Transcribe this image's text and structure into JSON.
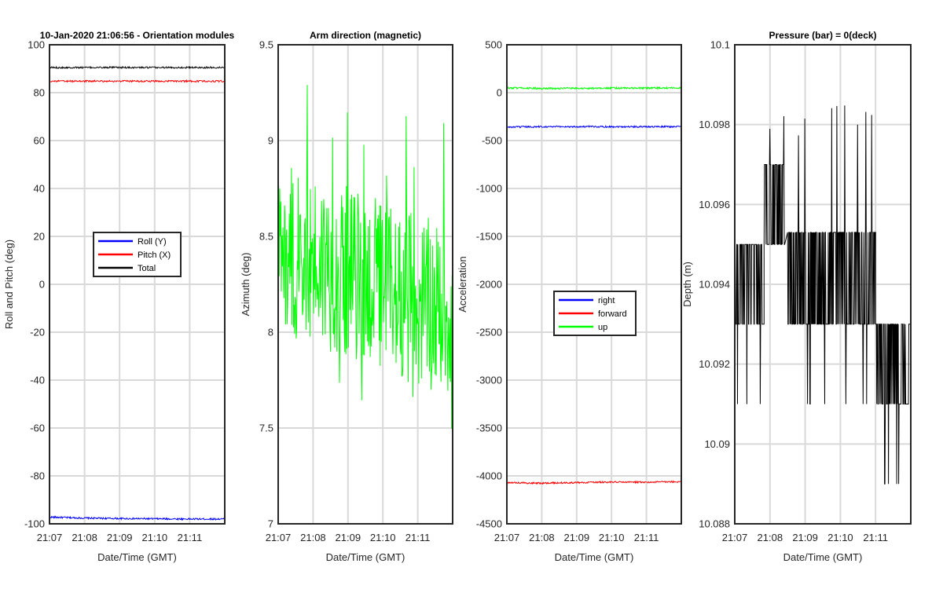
{
  "chart_data": [
    {
      "type": "line",
      "title": "10-Jan-2020 21:06:56 - Orientation modules",
      "xlabel": "Date/Time (GMT)",
      "ylabel": "Roll and Pitch (deg)",
      "x_range": [
        "21:07",
        "21:12"
      ],
      "x_ticks": [
        "21:07",
        "21:08",
        "21:09",
        "21:10",
        "21:11"
      ],
      "ylim": [
        -100,
        100
      ],
      "y_ticks": [
        100,
        80,
        60,
        40,
        20,
        0,
        -20,
        -40,
        -60,
        -80,
        -100
      ],
      "grid": true,
      "legend": "center",
      "series": [
        {
          "name": "Roll (Y)",
          "color": "#0000ff",
          "values": [
            -97.2,
            -97.6,
            -97.8,
            -97.9,
            -98.0,
            -98.0
          ]
        },
        {
          "name": "Pitch (X)",
          "color": "#ff0000",
          "values": [
            84.8,
            84.8,
            84.8,
            84.8,
            84.8,
            84.8
          ]
        },
        {
          "name": "Total",
          "color": "#000000",
          "values": [
            90.5,
            90.5,
            90.5,
            90.5,
            90.5,
            90.5
          ]
        }
      ]
    },
    {
      "type": "line",
      "title": "Arm direction (magnetic)",
      "xlabel": "Date/Time (GMT)",
      "ylabel": "Azimuth (deg)",
      "x_range": [
        "21:07",
        "21:12"
      ],
      "x_ticks": [
        "21:07",
        "21:08",
        "21:09",
        "21:10",
        "21:11"
      ],
      "ylim": [
        7,
        9.5
      ],
      "y_ticks": [
        9.5,
        9,
        8.5,
        8,
        7.5,
        7
      ],
      "grid": true,
      "series": [
        {
          "color": "#00ff00",
          "mean_start": 8.45,
          "mean_end": 8.1,
          "min": 7.2,
          "max": 9.3
        }
      ]
    },
    {
      "type": "line",
      "title": "",
      "xlabel": "Date/Time (GMT)",
      "ylabel": "Acceleration",
      "x_range": [
        "21:07",
        "21:12"
      ],
      "x_ticks": [
        "21:07",
        "21:08",
        "21:09",
        "21:10",
        "21:11"
      ],
      "ylim": [
        -4500,
        500
      ],
      "y_ticks": [
        500,
        0,
        -500,
        -1000,
        -1500,
        -2000,
        -2500,
        -3000,
        -3500,
        -4000,
        -4500
      ],
      "grid": true,
      "legend": "center",
      "series": [
        {
          "name": "right",
          "color": "#0000ff",
          "values": [
            -360,
            -355,
            -355,
            -355,
            -355,
            -355
          ]
        },
        {
          "name": "forward",
          "color": "#ff0000",
          "values": [
            -4070,
            -4075,
            -4070,
            -4065,
            -4065,
            -4060
          ]
        },
        {
          "name": "up",
          "color": "#00ff00",
          "values": [
            50,
            45,
            45,
            48,
            48,
            50
          ]
        }
      ]
    },
    {
      "type": "line",
      "title": "Pressure (bar) = 0(deck)",
      "xlabel": "Date/Time (GMT)",
      "ylabel": "Depth (m)",
      "x_range": [
        "21:07",
        "21:12"
      ],
      "x_ticks": [
        "21:07",
        "21:08",
        "21:09",
        "21:10",
        "21:11"
      ],
      "ylim": [
        10.088,
        10.1
      ],
      "y_ticks": [
        10.1,
        10.098,
        10.096,
        10.094,
        10.092,
        10.09,
        10.088
      ],
      "grid": true,
      "series": [
        {
          "color": "#000000",
          "bands": [
            {
              "x": [
                "21:07",
                "21:07:50"
              ],
              "y": [
                10.093,
                10.095
              ]
            },
            {
              "x": [
                "21:07:50",
                "21:08:25"
              ],
              "y": [
                10.095,
                10.097
              ]
            },
            {
              "x": [
                "21:08:30",
                "21:11:00"
              ],
              "y": [
                10.093,
                10.0953
              ]
            },
            {
              "x": [
                "21:11:00",
                "21:12"
              ],
              "y": [
                10.091,
                10.093
              ]
            }
          ],
          "min": 10.089,
          "max": 10.0991
        }
      ]
    }
  ]
}
